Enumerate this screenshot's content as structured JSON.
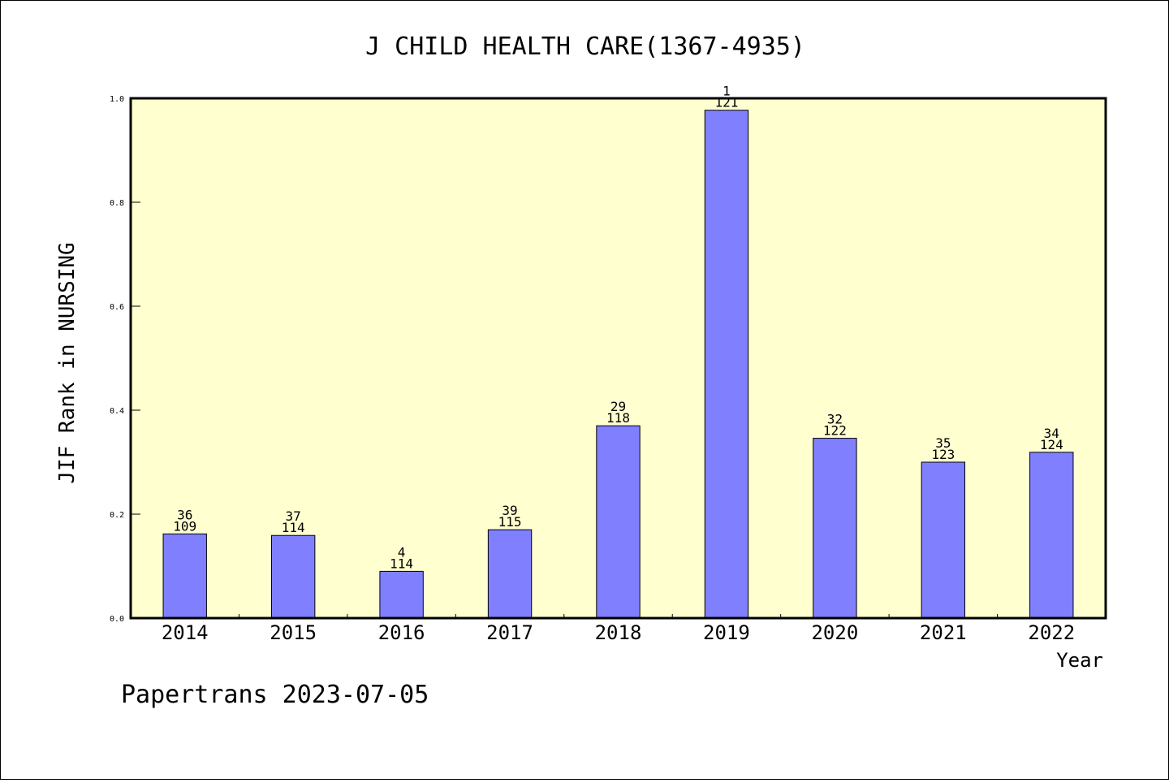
{
  "chart_data": {
    "type": "bar",
    "title": "J CHILD HEALTH CARE(1367-4935)",
    "xlabel": "Year",
    "ylabel": "JIF Rank in NURSING",
    "ylim": [
      0,
      1.0
    ],
    "yticks": [
      "0.0",
      "0.2",
      "0.4",
      "0.6",
      "0.8",
      "1.0"
    ],
    "categories": [
      "2014",
      "2015",
      "2016",
      "2017",
      "2018",
      "2019",
      "2020",
      "2021",
      "2022"
    ],
    "values": [
      0.162,
      0.159,
      0.09,
      0.17,
      0.37,
      0.977,
      0.346,
      0.3,
      0.319
    ],
    "rank": [
      "36",
      "37",
      "4",
      "39",
      "29",
      "1",
      "32",
      "35",
      "34"
    ],
    "total": [
      "109",
      "114",
      "114",
      "115",
      "118",
      "121",
      "122",
      "123",
      "124"
    ],
    "colors": {
      "bar": "#8080ff",
      "plot_bg": "#ffffd0",
      "page_bg": "#ffffff"
    },
    "grid": false,
    "legend": "none"
  },
  "footer": "Papertrans 2023-07-05"
}
